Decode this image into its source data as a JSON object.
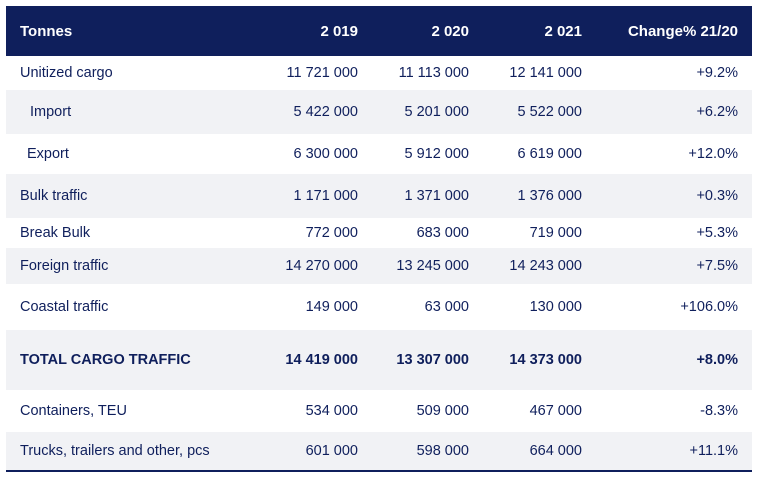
{
  "header": [
    "Tonnes",
    "2 019",
    "2 020",
    "2 021",
    "Change% 21/20"
  ],
  "rows": [
    {
      "label": "Unitized cargo",
      "v2019": "11 721 000",
      "v2020": "11 113 000",
      "v2021": "12 141 000",
      "change": "+9.2%"
    },
    {
      "label": "Import",
      "v2019": "5 422 000",
      "v2020": "5 201 000",
      "v2021": "5 522 000",
      "change": "+6.2%"
    },
    {
      "label": "Export",
      "v2019": "6 300 000",
      "v2020": "5 912 000",
      "v2021": "6 619 000",
      "change": "+12.0%"
    },
    {
      "label": "Bulk traffic",
      "v2019": "1 171 000",
      "v2020": "1 371 000",
      "v2021": "1 376 000",
      "change": "+0.3%"
    },
    {
      "label": "Break Bulk",
      "v2019": "772 000",
      "v2020": "683 000",
      "v2021": "719 000",
      "change": "+5.3%"
    },
    {
      "label": "Foreign traffic",
      "v2019": "14 270 000",
      "v2020": "13 245 000",
      "v2021": "14 243 000",
      "change": "+7.5%"
    },
    {
      "label": "Coastal traffic",
      "v2019": "149 000",
      "v2020": "63 000",
      "v2021": "130 000",
      "change": "+106.0%"
    },
    {
      "label": "TOTAL CARGO TRAFFIC",
      "v2019": "14 419 000",
      "v2020": "13 307 000",
      "v2021": "14 373 000",
      "change": "+8.0%"
    },
    {
      "label": "Containers, TEU",
      "v2019": "534 000",
      "v2020": "509 000",
      "v2021": "467 000",
      "change": "-8.3%"
    },
    {
      "label": "Trucks, trailers and other, pcs",
      "v2019": "601 000",
      "v2020": "598 000",
      "v2021": "664 000",
      "change": "+11.1%"
    }
  ]
}
